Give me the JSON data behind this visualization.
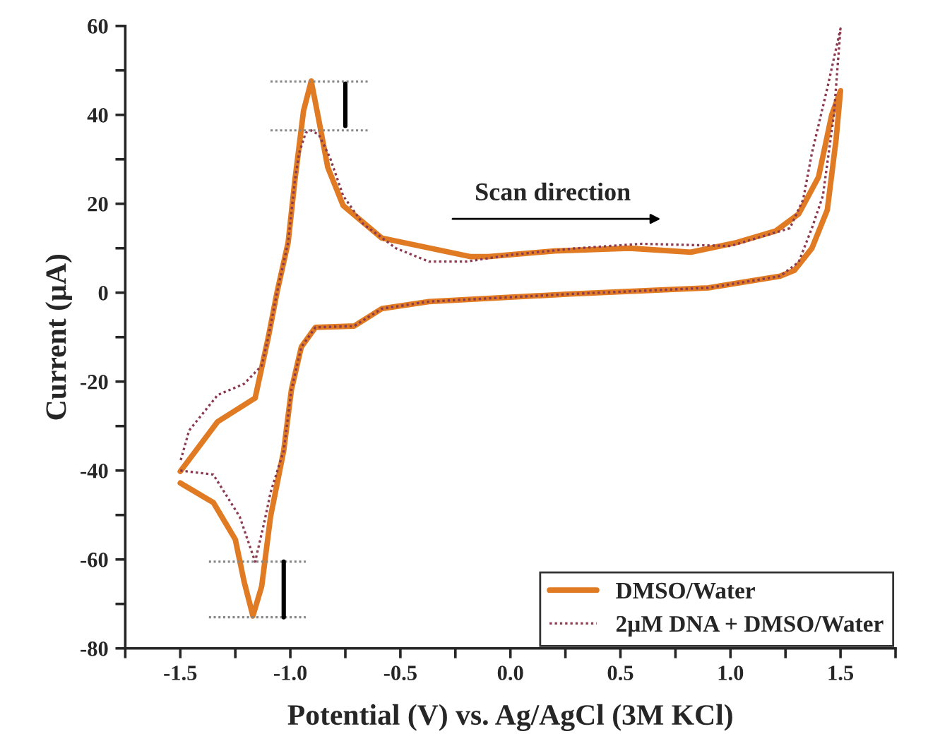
{
  "chart_data": {
    "type": "line",
    "xlabel": "Potential (V) vs. Ag/AgCl (3M KCl)",
    "ylabel": "Current (µA)",
    "xlim": [
      -1.75,
      1.75
    ],
    "ylim": [
      -80,
      60
    ],
    "xticks": [
      {
        "value": -1.75,
        "label": null
      },
      -1.5,
      {
        "value": -1.25,
        "label": null
      },
      {
        "value": -1,
        "label": "-1.0"
      },
      {
        "value": -0.75,
        "label": null
      },
      -0.5,
      {
        "value": -0.25,
        "label": null
      },
      {
        "value": 0,
        "label": "0.0"
      },
      {
        "value": 0.25,
        "label": null
      },
      0.5,
      {
        "value": 0.75,
        "label": null
      },
      {
        "value": 1,
        "label": "1.0"
      },
      {
        "value": 1.25,
        "label": null
      },
      1.5,
      {
        "value": 1.75,
        "label": null
      }
    ],
    "yticks": [
      -80,
      {
        "value": -70,
        "label": null
      },
      -60,
      {
        "value": -50,
        "label": null
      },
      -40,
      {
        "value": -30,
        "label": null
      },
      -20,
      {
        "value": -10,
        "label": null
      },
      0,
      {
        "value": 10,
        "label": null
      },
      20,
      {
        "value": 30,
        "label": null
      },
      40,
      {
        "value": 50,
        "label": null
      },
      60
    ],
    "grid": false,
    "legend": "bottom right",
    "annotations": [
      "Scan direction"
    ],
    "series": [
      {
        "name": "DMSO/Water",
        "color": "#e07b24",
        "line_style": "solid",
        "x": [
          -1.5,
          -1.35,
          -1.25,
          -1.21,
          -1.17,
          -1.13,
          -1.09,
          -1.03,
          -0.995,
          -0.95,
          -0.886,
          -0.71,
          -0.585,
          -0.37,
          0.27,
          0.9,
          1.225,
          1.29,
          1.37,
          1.44,
          1.48,
          1.5,
          1.46,
          1.4,
          1.31,
          1.206,
          1.03,
          0.82,
          0.54,
          0.2,
          -0.1,
          -0.18,
          -0.585,
          -0.76,
          -0.83,
          -0.87,
          -0.905,
          -0.94,
          -0.98,
          -1.01,
          -1.06,
          -1.1,
          -1.16,
          -1.33,
          -1.5
        ],
        "values": [
          -42.8,
          -47.2,
          -55.5,
          -65,
          -72.7,
          -66,
          -50.4,
          -35.5,
          -21.8,
          -12.2,
          -7.8,
          -7.5,
          -3.6,
          -2.0,
          -0.3,
          1.1,
          3.7,
          5,
          10,
          18.6,
          34.5,
          45.4,
          40,
          26,
          17.7,
          13.9,
          11.3,
          9.1,
          10,
          9.4,
          8.1,
          8.1,
          12.3,
          19.6,
          28.2,
          38.7,
          47.6,
          40.9,
          25,
          11.3,
          0.2,
          -10,
          -23.7,
          -29,
          -40.2
        ]
      },
      {
        "name": "2µM DNA + DMSO/Water",
        "color": "#8b3a50",
        "line_style": "dotted",
        "x": [
          -1.5,
          -1.35,
          -1.23,
          -1.16,
          -1.12,
          -1.09,
          -1.03,
          -0.995,
          -0.95,
          -0.886,
          -0.71,
          -0.585,
          -0.37,
          0.27,
          0.9,
          1.225,
          1.31,
          1.37,
          1.42,
          1.47,
          1.5,
          1.44,
          1.37,
          1.33,
          1.27,
          1.0,
          0.6,
          0.3,
          0.0,
          -0.2,
          -0.37,
          -0.52,
          -0.67,
          -0.76,
          -0.82,
          -0.87,
          -0.905,
          -0.93,
          -0.96,
          -0.98,
          -1.01,
          -1.06,
          -1.1,
          -1.13,
          -1.21,
          -1.33,
          -1.46,
          -1.5
        ],
        "values": [
          -40,
          -40.9,
          -50.4,
          -60.5,
          -52,
          -45,
          -35.5,
          -21.8,
          -12.2,
          -7.8,
          -7.5,
          -3.6,
          -2.0,
          -0.3,
          1.1,
          3.7,
          6.9,
          14.5,
          21.8,
          40,
          59.4,
          46,
          31.4,
          20.9,
          14.5,
          10.5,
          11,
          10,
          8.5,
          7,
          7,
          10,
          15.5,
          21.8,
          30.4,
          35.5,
          36.5,
          36,
          31.4,
          25,
          11.3,
          0.2,
          -10,
          -16.4,
          -20.5,
          -23,
          -31,
          -38
        ]
      },
      {
        "color": "#888888",
        "line_style": "dotted",
        "x": [
          -1.09,
          -0.64
        ],
        "values": [
          47.5,
          47.5
        ]
      },
      {
        "color": "#888888",
        "line_style": "dotted",
        "x": [
          -1.09,
          -0.64
        ],
        "values": [
          36.5,
          36.5
        ]
      },
      {
        "color": "#000000",
        "line_style": "solid",
        "x": [
          -0.75,
          -0.75
        ],
        "values": [
          47,
          37.5
        ]
      },
      {
        "color": "#888888",
        "line_style": "dotted",
        "x": [
          -1.37,
          -0.93
        ],
        "values": [
          -60.5,
          -60.5
        ]
      },
      {
        "color": "#888888",
        "line_style": "dotted",
        "x": [
          -1.37,
          -0.93
        ],
        "values": [
          -73,
          -73
        ]
      },
      {
        "color": "#000000",
        "line_style": "solid",
        "x": [
          -1.03,
          -1.03
        ],
        "values": [
          -60.5,
          -73
        ]
      }
    ]
  }
}
